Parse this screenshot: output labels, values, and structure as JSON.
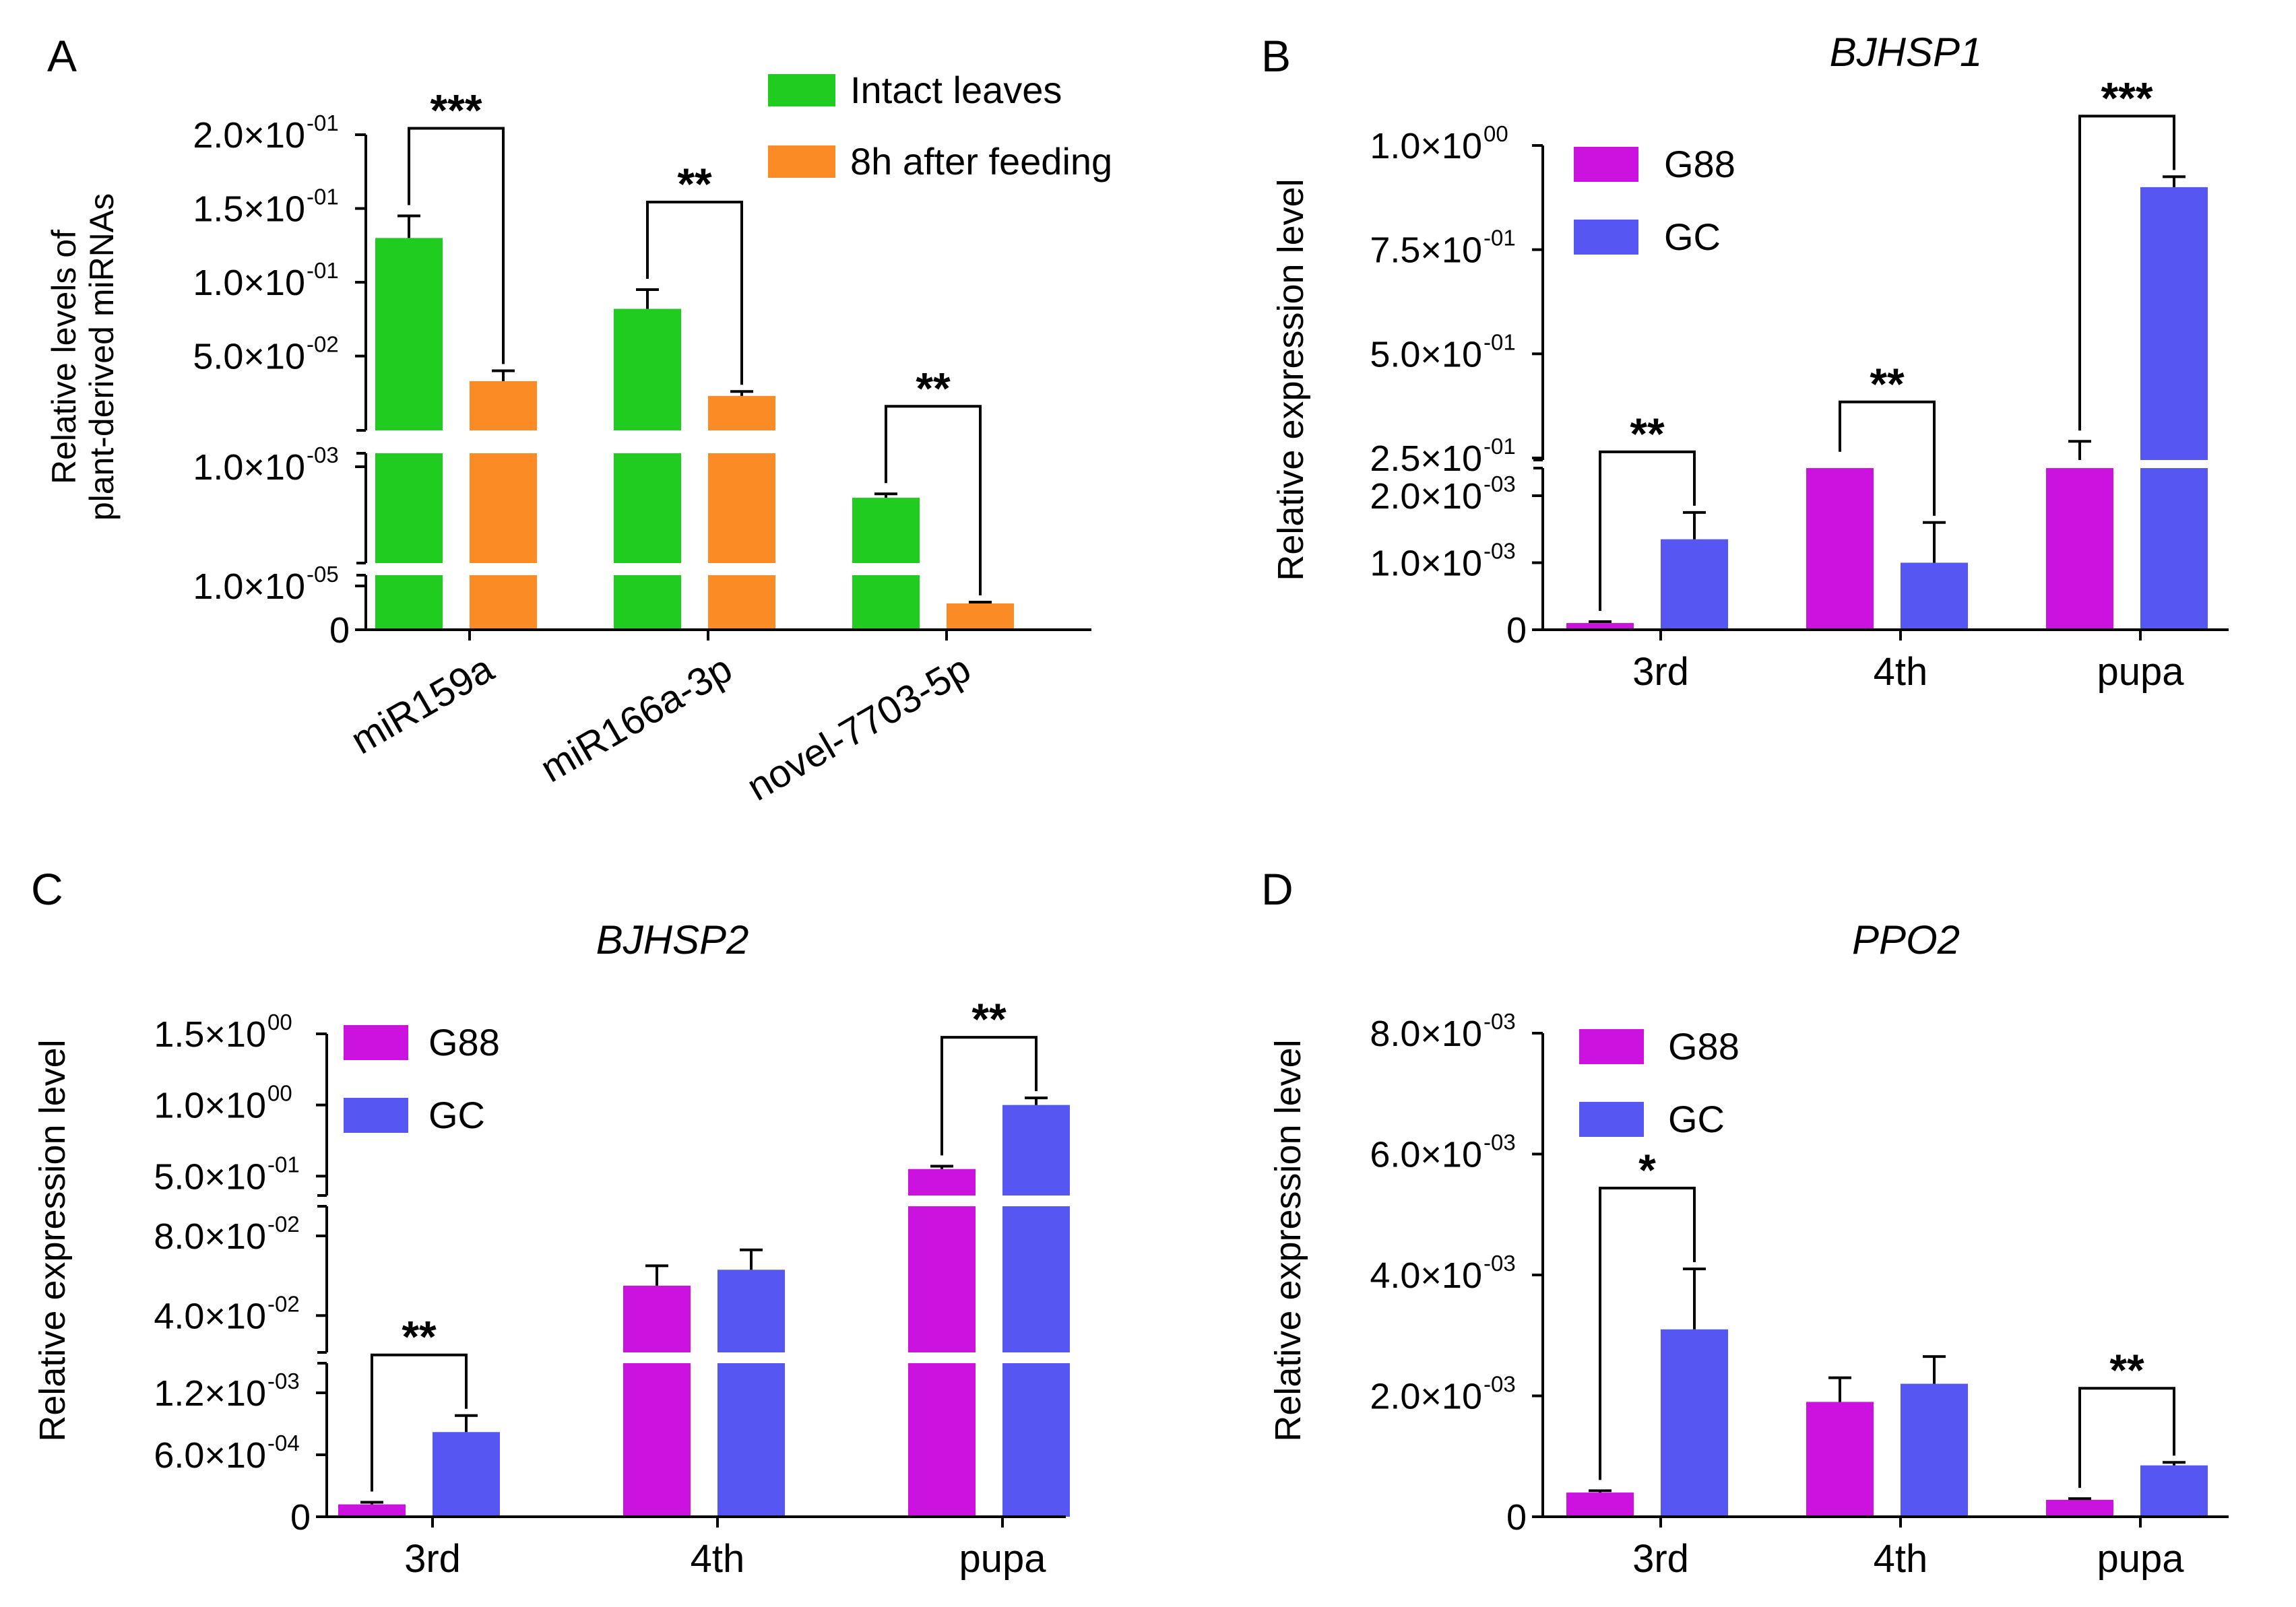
{
  "figure": {
    "panels": {
      "A": {
        "letter": "A",
        "ylabel_line1": "Relative levels of",
        "ylabel_line2": "plant-derived miRNAs"
      },
      "B": {
        "letter": "B",
        "title": "BJHSP1",
        "ylabel": "Relative expression level"
      },
      "C": {
        "letter": "C",
        "title": "BJHSP2",
        "ylabel": "Relative expression level"
      },
      "D": {
        "letter": "D",
        "title": "PPO2",
        "ylabel": "Relative expression level"
      }
    }
  },
  "chart_data": [
    {
      "panel": "A",
      "type": "bar",
      "title": "",
      "xlabel": "",
      "ylabel": "Relative levels of plant-derived miRNAs",
      "y_scale": "segmented",
      "categories": [
        "miR159a",
        "miR166a-3p",
        "novel-7703-5p"
      ],
      "series": [
        {
          "name": "Intact leaves",
          "color": "#1fcc1f",
          "values": [
            0.13,
            0.082,
            0.0006
          ],
          "errors": [
            0.015,
            0.013,
            5e-05
          ]
        },
        {
          "name": "8h after feeding",
          "color": "#fb8b24",
          "values": [
            0.033,
            0.023,
            6e-06
          ],
          "errors": [
            0.007,
            0.003,
            3e-07
          ]
        }
      ],
      "y_ticks": [
        {
          "value": 0,
          "base": "0",
          "exp": ""
        },
        {
          "value": 1e-05,
          "base": "1.0×10",
          "exp": "-05"
        },
        {
          "value": 0.001,
          "base": "1.0×10",
          "exp": "-03"
        },
        {
          "value": 0.05,
          "base": "5.0×10",
          "exp": "-02"
        },
        {
          "value": 0.1,
          "base": "1.0×10",
          "exp": "-01"
        },
        {
          "value": 0.15,
          "base": "1.5×10",
          "exp": "-01"
        },
        {
          "value": 0.2,
          "base": "2.0×10",
          "exp": "-01"
        }
      ],
      "significance": [
        "***",
        "**",
        "**"
      ],
      "legend": [
        "Intact leaves",
        "8h after feeding"
      ],
      "legend_position": "top-right"
    },
    {
      "panel": "B",
      "type": "bar",
      "title": "BJHSP1",
      "xlabel": "",
      "ylabel": "Relative expression level",
      "y_scale": "segmented",
      "categories": [
        "3rd",
        "4th",
        "pupa"
      ],
      "series": [
        {
          "name": "G88",
          "color": "#cc12de",
          "values": [
            0.0001,
            0.2,
            0.23
          ],
          "errors": [
            2e-05,
            0.02,
            0.06
          ]
        },
        {
          "name": "GC",
          "color": "#5656f2",
          "values": [
            0.00135,
            0.001,
            0.9
          ],
          "errors": [
            0.0004,
            0.0006,
            0.025
          ]
        }
      ],
      "y_ticks": [
        {
          "value": 0,
          "base": "0",
          "exp": ""
        },
        {
          "value": 0.001,
          "base": "1.0×10",
          "exp": "-03"
        },
        {
          "value": 0.002,
          "base": "2.0×10",
          "exp": "-03"
        },
        {
          "value": 0.25,
          "base": "2.5×10",
          "exp": "-01"
        },
        {
          "value": 0.5,
          "base": "5.0×10",
          "exp": "-01"
        },
        {
          "value": 0.75,
          "base": "7.5×10",
          "exp": "-01"
        },
        {
          "value": 1.0,
          "base": "1.0×10",
          "exp": "00"
        }
      ],
      "significance": [
        "**",
        "**",
        "***"
      ],
      "legend": [
        "G88",
        "GC"
      ],
      "legend_position": "top-left"
    },
    {
      "panel": "C",
      "type": "bar",
      "title": "BJHSP2",
      "xlabel": "",
      "ylabel": "Relative expression level",
      "y_scale": "segmented",
      "categories": [
        "3rd",
        "4th",
        "pupa"
      ],
      "series": [
        {
          "name": "G88",
          "color": "#cc12de",
          "values": [
            0.00012,
            0.055,
            0.55
          ],
          "errors": [
            2e-05,
            0.01,
            0.02
          ]
        },
        {
          "name": "GC",
          "color": "#5656f2",
          "values": [
            0.00082,
            0.063,
            1.0
          ],
          "errors": [
            0.00016,
            0.01,
            0.05
          ]
        }
      ],
      "y_ticks": [
        {
          "value": 0,
          "base": "0",
          "exp": ""
        },
        {
          "value": 0.0006,
          "base": "6.0×10",
          "exp": "-04"
        },
        {
          "value": 0.0012,
          "base": "1.2×10",
          "exp": "-03"
        },
        {
          "value": 0.04,
          "base": "4.0×10",
          "exp": "-02"
        },
        {
          "value": 0.08,
          "base": "8.0×10",
          "exp": "-02"
        },
        {
          "value": 0.5,
          "base": "5.0×10",
          "exp": "-01"
        },
        {
          "value": 1.0,
          "base": "1.0×10",
          "exp": "00"
        },
        {
          "value": 1.5,
          "base": "1.5×10",
          "exp": "00"
        }
      ],
      "significance": [
        "**",
        "",
        "**"
      ],
      "legend": [
        "G88",
        "GC"
      ],
      "legend_position": "top-left"
    },
    {
      "panel": "D",
      "type": "bar",
      "title": "PPO2",
      "xlabel": "",
      "ylabel": "Relative expression level",
      "y_scale": "linear",
      "ylim": [
        0,
        0.008
      ],
      "categories": [
        "3rd",
        "4th",
        "pupa"
      ],
      "series": [
        {
          "name": "G88",
          "color": "#cc12de",
          "values": [
            0.0004,
            0.0019,
            0.00028
          ],
          "errors": [
            3e-05,
            0.0004,
            2e-05
          ]
        },
        {
          "name": "GC",
          "color": "#5656f2",
          "values": [
            0.0031,
            0.0022,
            0.00085
          ],
          "errors": [
            0.001,
            0.00045,
            5e-05
          ]
        }
      ],
      "y_ticks": [
        {
          "value": 0,
          "base": "0",
          "exp": ""
        },
        {
          "value": 0.002,
          "base": "2.0×10",
          "exp": "-03"
        },
        {
          "value": 0.004,
          "base": "4.0×10",
          "exp": "-03"
        },
        {
          "value": 0.006,
          "base": "6.0×10",
          "exp": "-03"
        },
        {
          "value": 0.008,
          "base": "8.0×10",
          "exp": "-03"
        }
      ],
      "significance": [
        "*",
        "",
        "**"
      ],
      "legend": [
        "G88",
        "GC"
      ],
      "legend_position": "top-left"
    }
  ]
}
